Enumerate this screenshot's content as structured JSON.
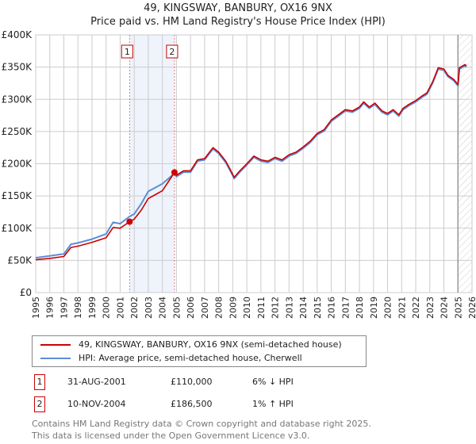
{
  "title": "49, KINGSWAY, BANBURY, OX16 9NX",
  "subtitle": "Price paid vs. HM Land Registry's House Price Index (HPI)",
  "chart_data": {
    "type": "line",
    "title": "49, KINGSWAY, BANBURY, OX16 9NX — Price paid vs. HM Land Registry's House Price Index (HPI)",
    "xlim": [
      1995,
      2026
    ],
    "ylim": [
      0,
      400000
    ],
    "x_ticks": [
      "1995",
      "1996",
      "1997",
      "1998",
      "1999",
      "2000",
      "2001",
      "2002",
      "2003",
      "2004",
      "2005",
      "2006",
      "2007",
      "2008",
      "2009",
      "2010",
      "2011",
      "2012",
      "2013",
      "2014",
      "2015",
      "2016",
      "2017",
      "2018",
      "2019",
      "2020",
      "2021",
      "2022",
      "2023",
      "2024",
      "2025",
      "2026"
    ],
    "y_ticks": [
      {
        "v": 0,
        "label": "£0"
      },
      {
        "v": 50000,
        "label": "£50K"
      },
      {
        "v": 100000,
        "label": "£100K"
      },
      {
        "v": 150000,
        "label": "£150K"
      },
      {
        "v": 200000,
        "label": "£200K"
      },
      {
        "v": 250000,
        "label": "£250K"
      },
      {
        "v": 300000,
        "label": "£300K"
      },
      {
        "v": 350000,
        "label": "£350K"
      },
      {
        "v": 400000,
        "label": "£400K"
      }
    ],
    "grid": true,
    "series": [
      {
        "name": "HPI: Average price, semi-detached house, Cherwell",
        "color": "#5b8fd4",
        "x": [
          1995,
          1996,
          1997,
          1997.5,
          1998,
          1999,
          2000,
          2000.5,
          2001,
          2001.67,
          2002,
          2002.5,
          2003,
          2003.5,
          2004,
          2004.86,
          2005,
          2005.5,
          2006,
          2006.5,
          2007,
          2007.6,
          2008,
          2008.5,
          2008.8,
          2009.1,
          2009.5,
          2010,
          2010.5,
          2011,
          2011.5,
          2012,
          2012.5,
          2013,
          2013.5,
          2014,
          2014.5,
          2015,
          2015.5,
          2016,
          2016.5,
          2017,
          2017.5,
          2018,
          2018.3,
          2018.7,
          2019.1,
          2019.6,
          2020,
          2020.4,
          2020.8,
          2021.1,
          2021.5,
          2022,
          2022.5,
          2022.8,
          2023.2,
          2023.6,
          2024,
          2024.3,
          2024.7,
          2025.0,
          2025.1,
          2025.5,
          2025.6
        ],
        "y": [
          54000,
          57000,
          60000,
          75000,
          77000,
          83000,
          91000,
          109000,
          107000,
          118000,
          122000,
          138000,
          157000,
          163000,
          169000,
          185000,
          180000,
          187000,
          187000,
          204000,
          206000,
          223000,
          216000,
          202000,
          190000,
          177000,
          187000,
          198000,
          210000,
          204000,
          202000,
          208000,
          204000,
          212000,
          216000,
          224000,
          233000,
          245000,
          251000,
          266000,
          274000,
          282000,
          280000,
          286000,
          294000,
          286000,
          292000,
          280000,
          276000,
          282000,
          274000,
          284000,
          290000,
          296000,
          304000,
          308000,
          325000,
          347000,
          345000,
          335000,
          329000,
          321000,
          347000,
          352000,
          350000
        ]
      },
      {
        "name": "49, KINGSWAY, BANBURY, OX16 9NX (semi-detached house)",
        "color": "#cc0000",
        "x": [
          1995,
          1996,
          1997,
          1997.5,
          1998,
          1999,
          2000,
          2000.5,
          2001,
          2001.67,
          2002,
          2002.5,
          2003,
          2003.5,
          2004,
          2004.86,
          2005,
          2005.5,
          2006,
          2006.5,
          2007,
          2007.6,
          2008,
          2008.5,
          2008.8,
          2009.1,
          2009.5,
          2010,
          2010.5,
          2011,
          2011.5,
          2012,
          2012.5,
          2013,
          2013.5,
          2014,
          2014.5,
          2015,
          2015.5,
          2016,
          2016.5,
          2017,
          2017.5,
          2018,
          2018.3,
          2018.7,
          2019.1,
          2019.6,
          2020,
          2020.4,
          2020.8,
          2021.1,
          2021.5,
          2022,
          2022.5,
          2022.8,
          2023.2,
          2023.6,
          2024,
          2024.3,
          2024.7,
          2025.0,
          2025.1,
          2025.5,
          2025.6
        ],
        "y": [
          51000,
          53000,
          56000,
          70000,
          72000,
          78000,
          85000,
          101000,
          100000,
          110000,
          114000,
          128000,
          146000,
          152000,
          158000,
          186500,
          182000,
          189000,
          189000,
          206000,
          208000,
          225000,
          218000,
          204000,
          192000,
          179000,
          189000,
          200000,
          212000,
          206000,
          204000,
          210000,
          206000,
          214000,
          218000,
          226000,
          235000,
          247000,
          253000,
          268000,
          276000,
          284000,
          282000,
          288000,
          296000,
          288000,
          294000,
          282000,
          278000,
          284000,
          276000,
          286000,
          292000,
          298000,
          306000,
          310000,
          327000,
          349000,
          347000,
          337000,
          331000,
          323000,
          349000,
          354000,
          352000
        ]
      }
    ],
    "sales": [
      {
        "label": "1",
        "x": 2001.67,
        "y": 110000
      },
      {
        "label": "2",
        "x": 2004.86,
        "y": 186500
      }
    ],
    "shaded_range": [
      2001.67,
      2004.86
    ],
    "forecast_hatch_from": 2025.0
  },
  "legend": {
    "property": "49, KINGSWAY, BANBURY, OX16 9NX (semi-detached house)",
    "hpi": "HPI: Average price, semi-detached house, Cherwell",
    "property_color": "#cc0000",
    "hpi_color": "#5b8fd4"
  },
  "transactions": [
    {
      "num": "1",
      "date": "31-AUG-2001",
      "price": "£110,000",
      "hpi": "6% ↓ HPI"
    },
    {
      "num": "2",
      "date": "10-NOV-2004",
      "price": "£186,500",
      "hpi": "1% ↑ HPI"
    }
  ],
  "footer": {
    "line1": "Contains HM Land Registry data © Crown copyright and database right 2025.",
    "line2": "This data is licensed under the Open Government Licence v3.0."
  }
}
